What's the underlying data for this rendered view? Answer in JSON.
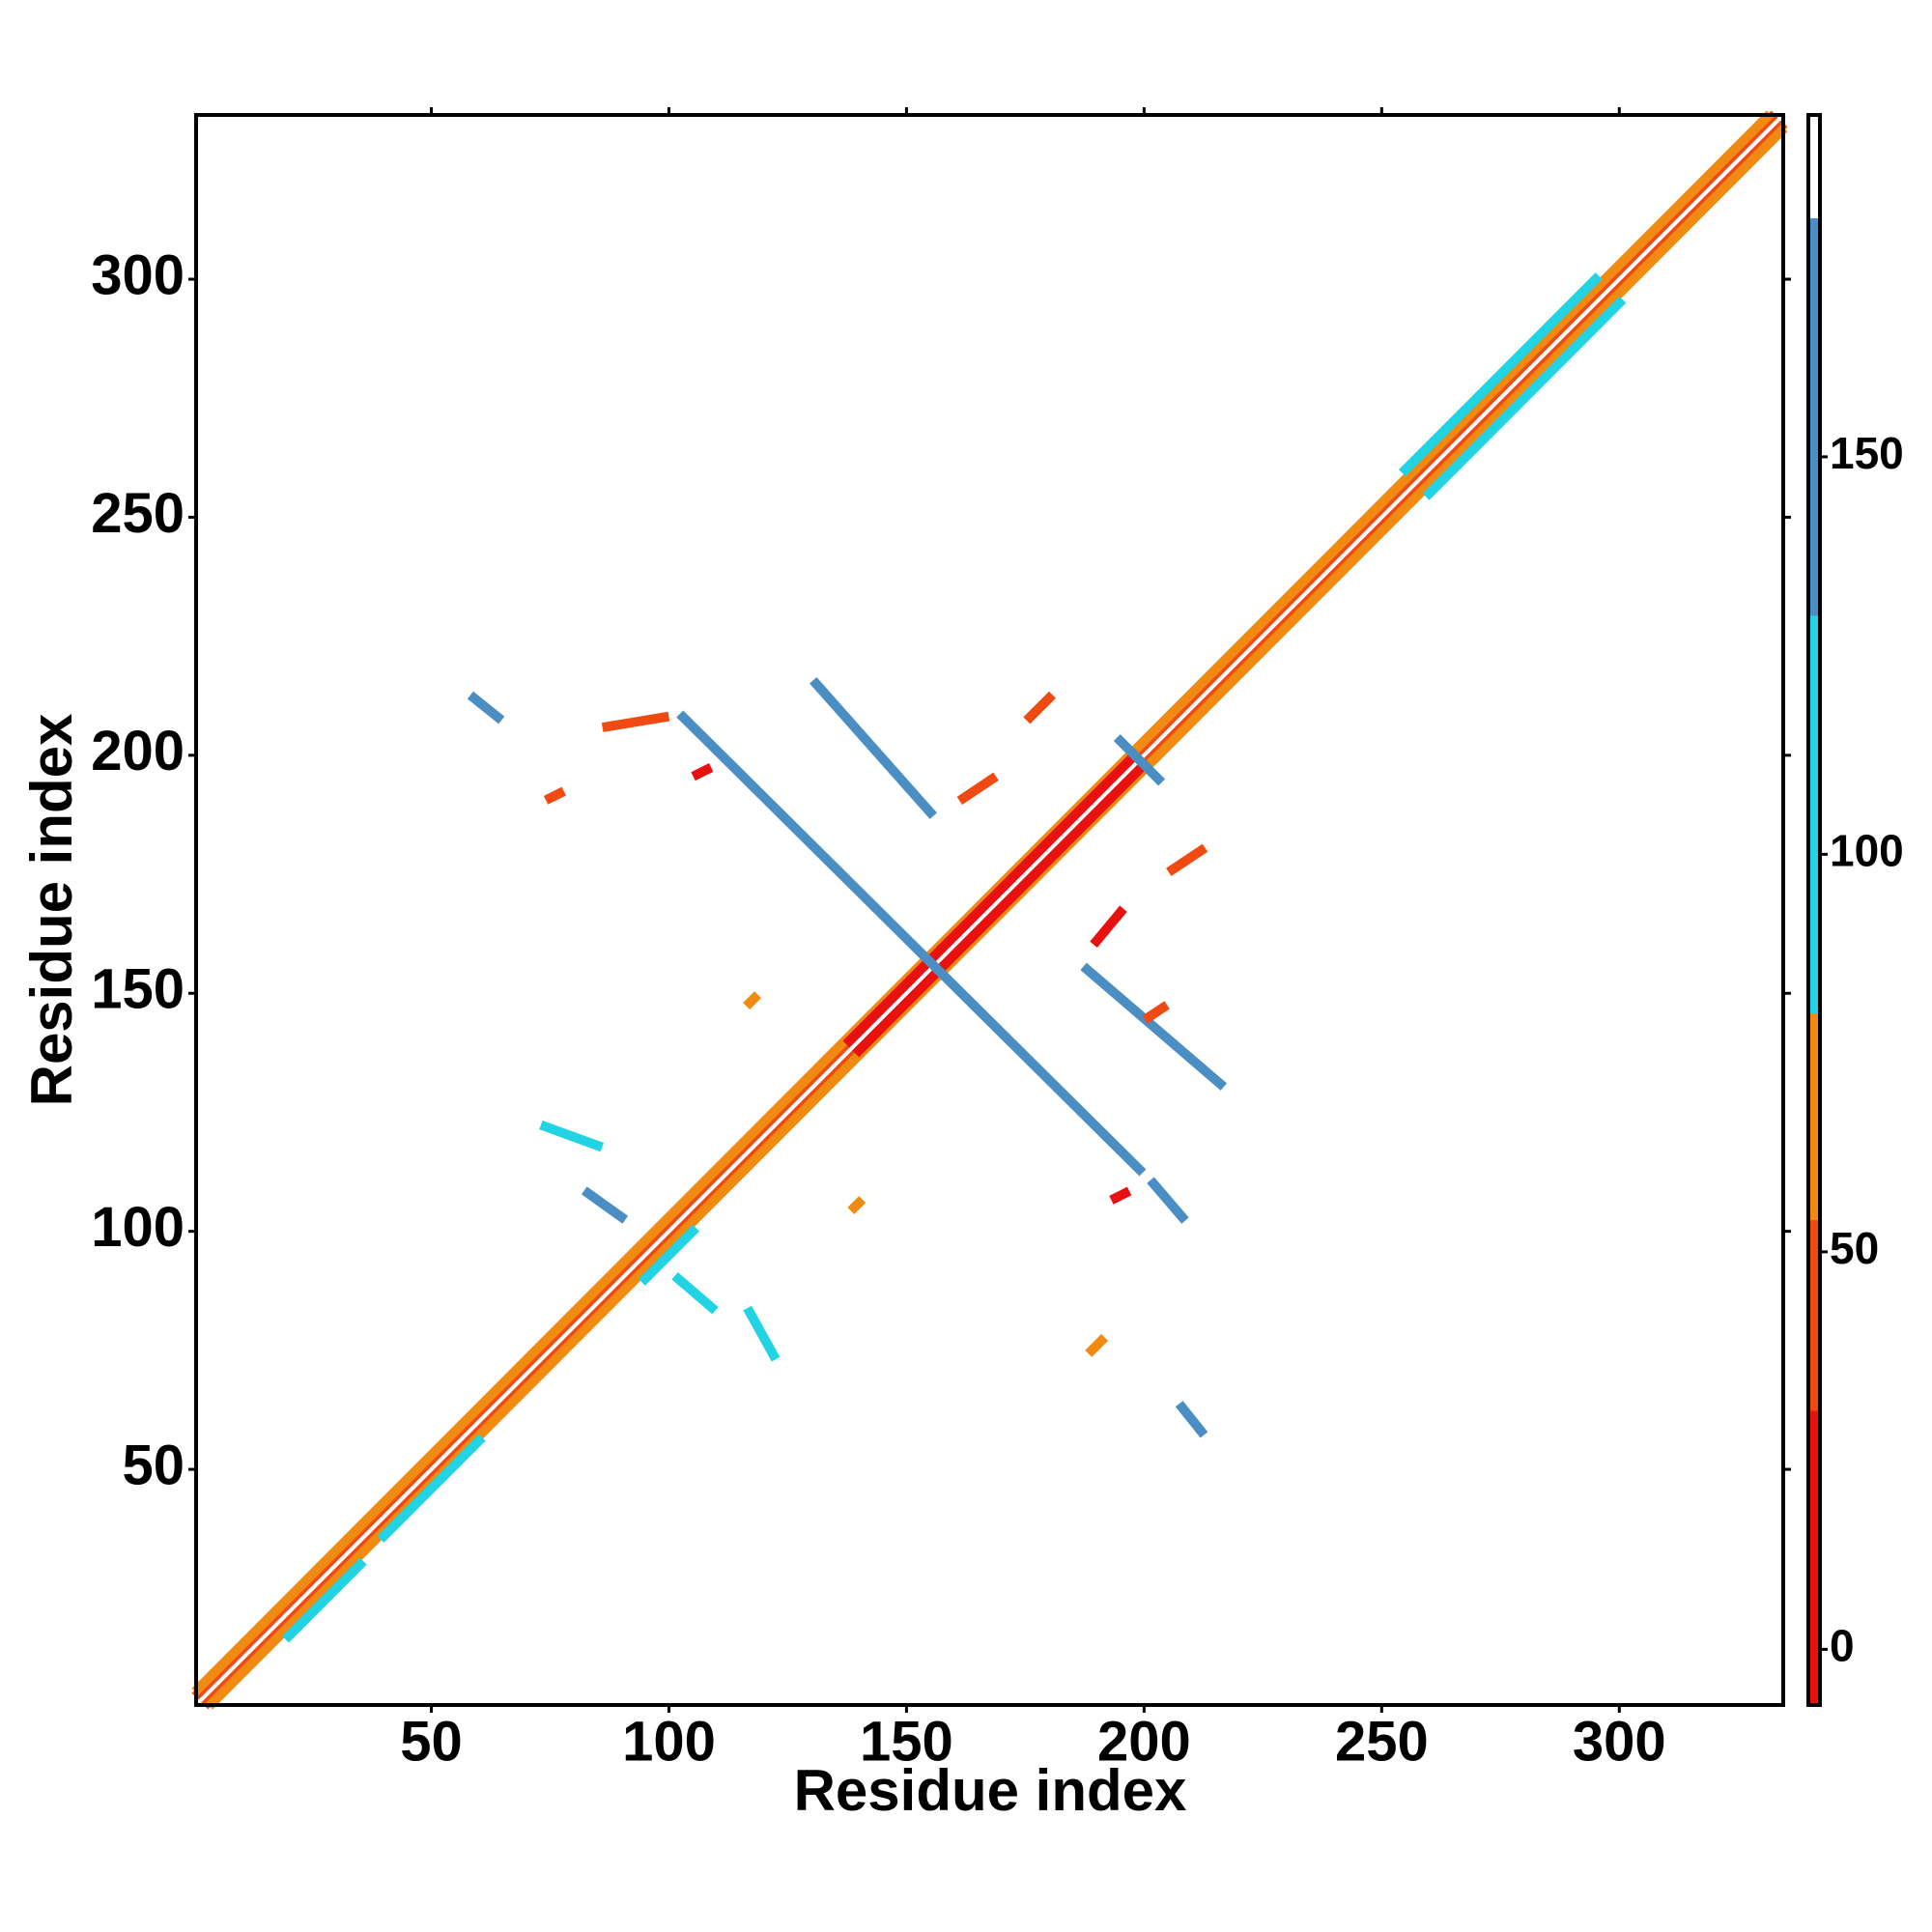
{
  "chart_data": {
    "type": "heatmap",
    "x_label": "Residue index",
    "y_label": "Residue index",
    "xlim": [
      0.5,
      334.5
    ],
    "ylim": [
      0.5,
      334.5
    ],
    "xticks": [
      50,
      100,
      150,
      200,
      250,
      300
    ],
    "yticks": [
      50,
      100,
      150,
      200,
      250,
      300
    ],
    "colorbar": {
      "lim": [
        -7,
        193
      ],
      "ticks": [
        0,
        50,
        100,
        150
      ],
      "bands": [
        {
          "from": -7,
          "to": 30,
          "color": "#e8110f"
        },
        {
          "from": 30,
          "to": 54,
          "color": "#f04a12"
        },
        {
          "from": 54,
          "to": 80,
          "color": "#f08a10"
        },
        {
          "from": 80,
          "to": 130,
          "color": "#22d3e4"
        },
        {
          "from": 130,
          "to": 180,
          "color": "#4a8ec4"
        },
        {
          "from": 180,
          "to": 193,
          "color": "#ffffff"
        }
      ]
    },
    "features": [
      {
        "x": [
          3,
          334
        ],
        "y": [
          1,
          332
        ],
        "value": 40
      },
      {
        "x": [
          1,
          332
        ],
        "y": [
          3,
          334
        ],
        "value": 40
      },
      {
        "x": [
          4,
          334
        ],
        "y": [
          1,
          331
        ],
        "value": 60
      },
      {
        "x": [
          1,
          331
        ],
        "y": [
          4,
          334
        ],
        "value": 60
      },
      {
        "x": [
          140,
          200
        ],
        "y": [
          138,
          198
        ],
        "value": 5
      },
      {
        "x": [
          138,
          198
        ],
        "y": [
          140,
          200
        ],
        "value": 5
      },
      {
        "x": [
          95,
          105
        ],
        "y": [
          90,
          100
        ],
        "value": 95
      },
      {
        "x": [
          260,
          300
        ],
        "y": [
          255,
          295
        ],
        "value": 95
      },
      {
        "x": [
          255,
          295
        ],
        "y": [
          260,
          300
        ],
        "value": 95
      },
      {
        "x": [
          40,
          60
        ],
        "y": [
          36,
          56
        ],
        "value": 95
      },
      {
        "x": [
          20,
          35
        ],
        "y": [
          15,
          30
        ],
        "value": 95
      },
      {
        "x": [
          103,
          199
        ],
        "y": [
          208,
          113
        ],
        "value": 150
      },
      {
        "x": [
          131,
          155
        ],
        "y": [
          215,
          188
        ],
        "value": 150
      },
      {
        "x": [
          188,
          216
        ],
        "y": [
          155,
          131
        ],
        "value": 150
      },
      {
        "x": [
          202,
          208
        ],
        "y": [
          110,
          103
        ],
        "value": 150
      },
      {
        "x": [
          59,
          64
        ],
        "y": [
          212,
          208
        ],
        "value": 150
      },
      {
        "x": [
          74,
          85
        ],
        "y": [
          122,
          118
        ],
        "value": 110
      },
      {
        "x": [
          83,
          90
        ],
        "y": [
          108,
          103
        ],
        "value": 150
      },
      {
        "x": [
          102,
          109
        ],
        "y": [
          90,
          84
        ],
        "value": 110
      },
      {
        "x": [
          117,
          122
        ],
        "y": [
          83,
          74
        ],
        "value": 100
      },
      {
        "x": [
          208,
          212
        ],
        "y": [
          63,
          58
        ],
        "value": 150
      },
      {
        "x": [
          195,
          203
        ],
        "y": [
          203,
          195
        ],
        "value": 150
      },
      {
        "x": [
          106,
          108
        ],
        "y": [
          196,
          197
        ],
        "value": 10
      },
      {
        "x": [
          194,
          196
        ],
        "y": [
          107,
          108
        ],
        "value": 10
      },
      {
        "x": [
          176,
          180
        ],
        "y": [
          208,
          212
        ],
        "value": 50
      },
      {
        "x": [
          162,
          168
        ],
        "y": [
          191,
          195
        ],
        "value": 45
      },
      {
        "x": [
          206,
          212
        ],
        "y": [
          176,
          180
        ],
        "value": 50
      },
      {
        "x": [
          190,
          195
        ],
        "y": [
          161,
          167
        ],
        "value": 20
      },
      {
        "x": [
          75,
          77
        ],
        "y": [
          191,
          192
        ],
        "value": 50
      },
      {
        "x": [
          87,
          99
        ],
        "y": [
          206,
          208
        ],
        "value": 50
      },
      {
        "x": [
          189,
          191
        ],
        "y": [
          75,
          77
        ],
        "value": 55
      },
      {
        "x": [
          117,
          118
        ],
        "y": [
          148,
          149
        ],
        "value": 60
      },
      {
        "x": [
          139,
          140
        ],
        "y": [
          105,
          106
        ],
        "value": 55
      },
      {
        "x": [
          201,
          204
        ],
        "y": [
          145,
          147
        ],
        "value": 50
      }
    ]
  }
}
